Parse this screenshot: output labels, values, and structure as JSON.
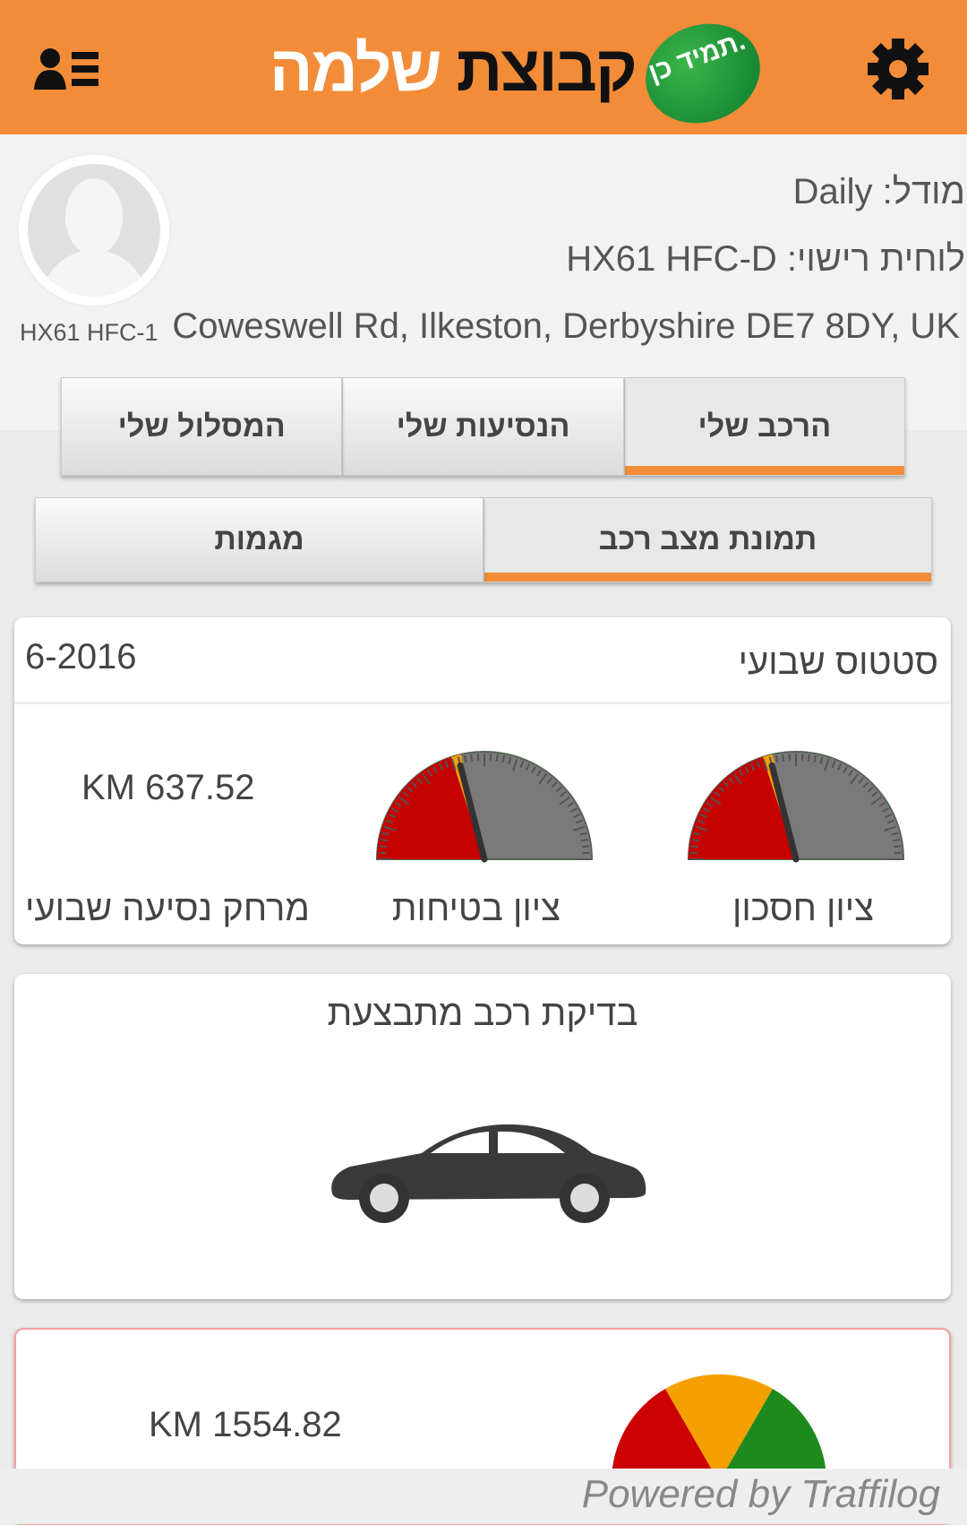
{
  "header": {
    "logo_text_white": "שלמה",
    "logo_text_black": "קבוצת",
    "logo_badge": "תמיד כן.",
    "brand_color": "#f28c38",
    "menu_icon": "user-list-icon",
    "settings_icon": "gear-icon"
  },
  "profile": {
    "plate_small": "HX61 HFC-1",
    "model": "מודל: Daily",
    "plate": "לוחית רישוי: HX61 HFC-D",
    "address": "Coweswell Rd, Ilkeston, Derbyshire DE7 8DY, UK"
  },
  "tabs": [
    {
      "label": "הרכב שלי",
      "active": true
    },
    {
      "label": "הנסיעות שלי",
      "active": false
    },
    {
      "label": "המסלול שלי",
      "active": false
    }
  ],
  "subtabs": [
    {
      "label": "תמונת מצב רכב",
      "active": true
    },
    {
      "label": "מגמות",
      "active": false
    }
  ],
  "weekly": {
    "title": "סטטוס שבועי",
    "date": "6-2016",
    "economy_label": "ציון חסכון",
    "economy_level": 0.4,
    "safety_label": "ציון בטיחות",
    "safety_level": 0.4,
    "distance_value": "KM 637.52",
    "distance_label": "מרחק נסיעה שבועי"
  },
  "check": {
    "title": "בדיקת רכב מתבצעת",
    "icon": "car-icon"
  },
  "third": {
    "distance_value": "KM 1554.82"
  },
  "footer": {
    "powered": "Powered by Traffilog"
  }
}
